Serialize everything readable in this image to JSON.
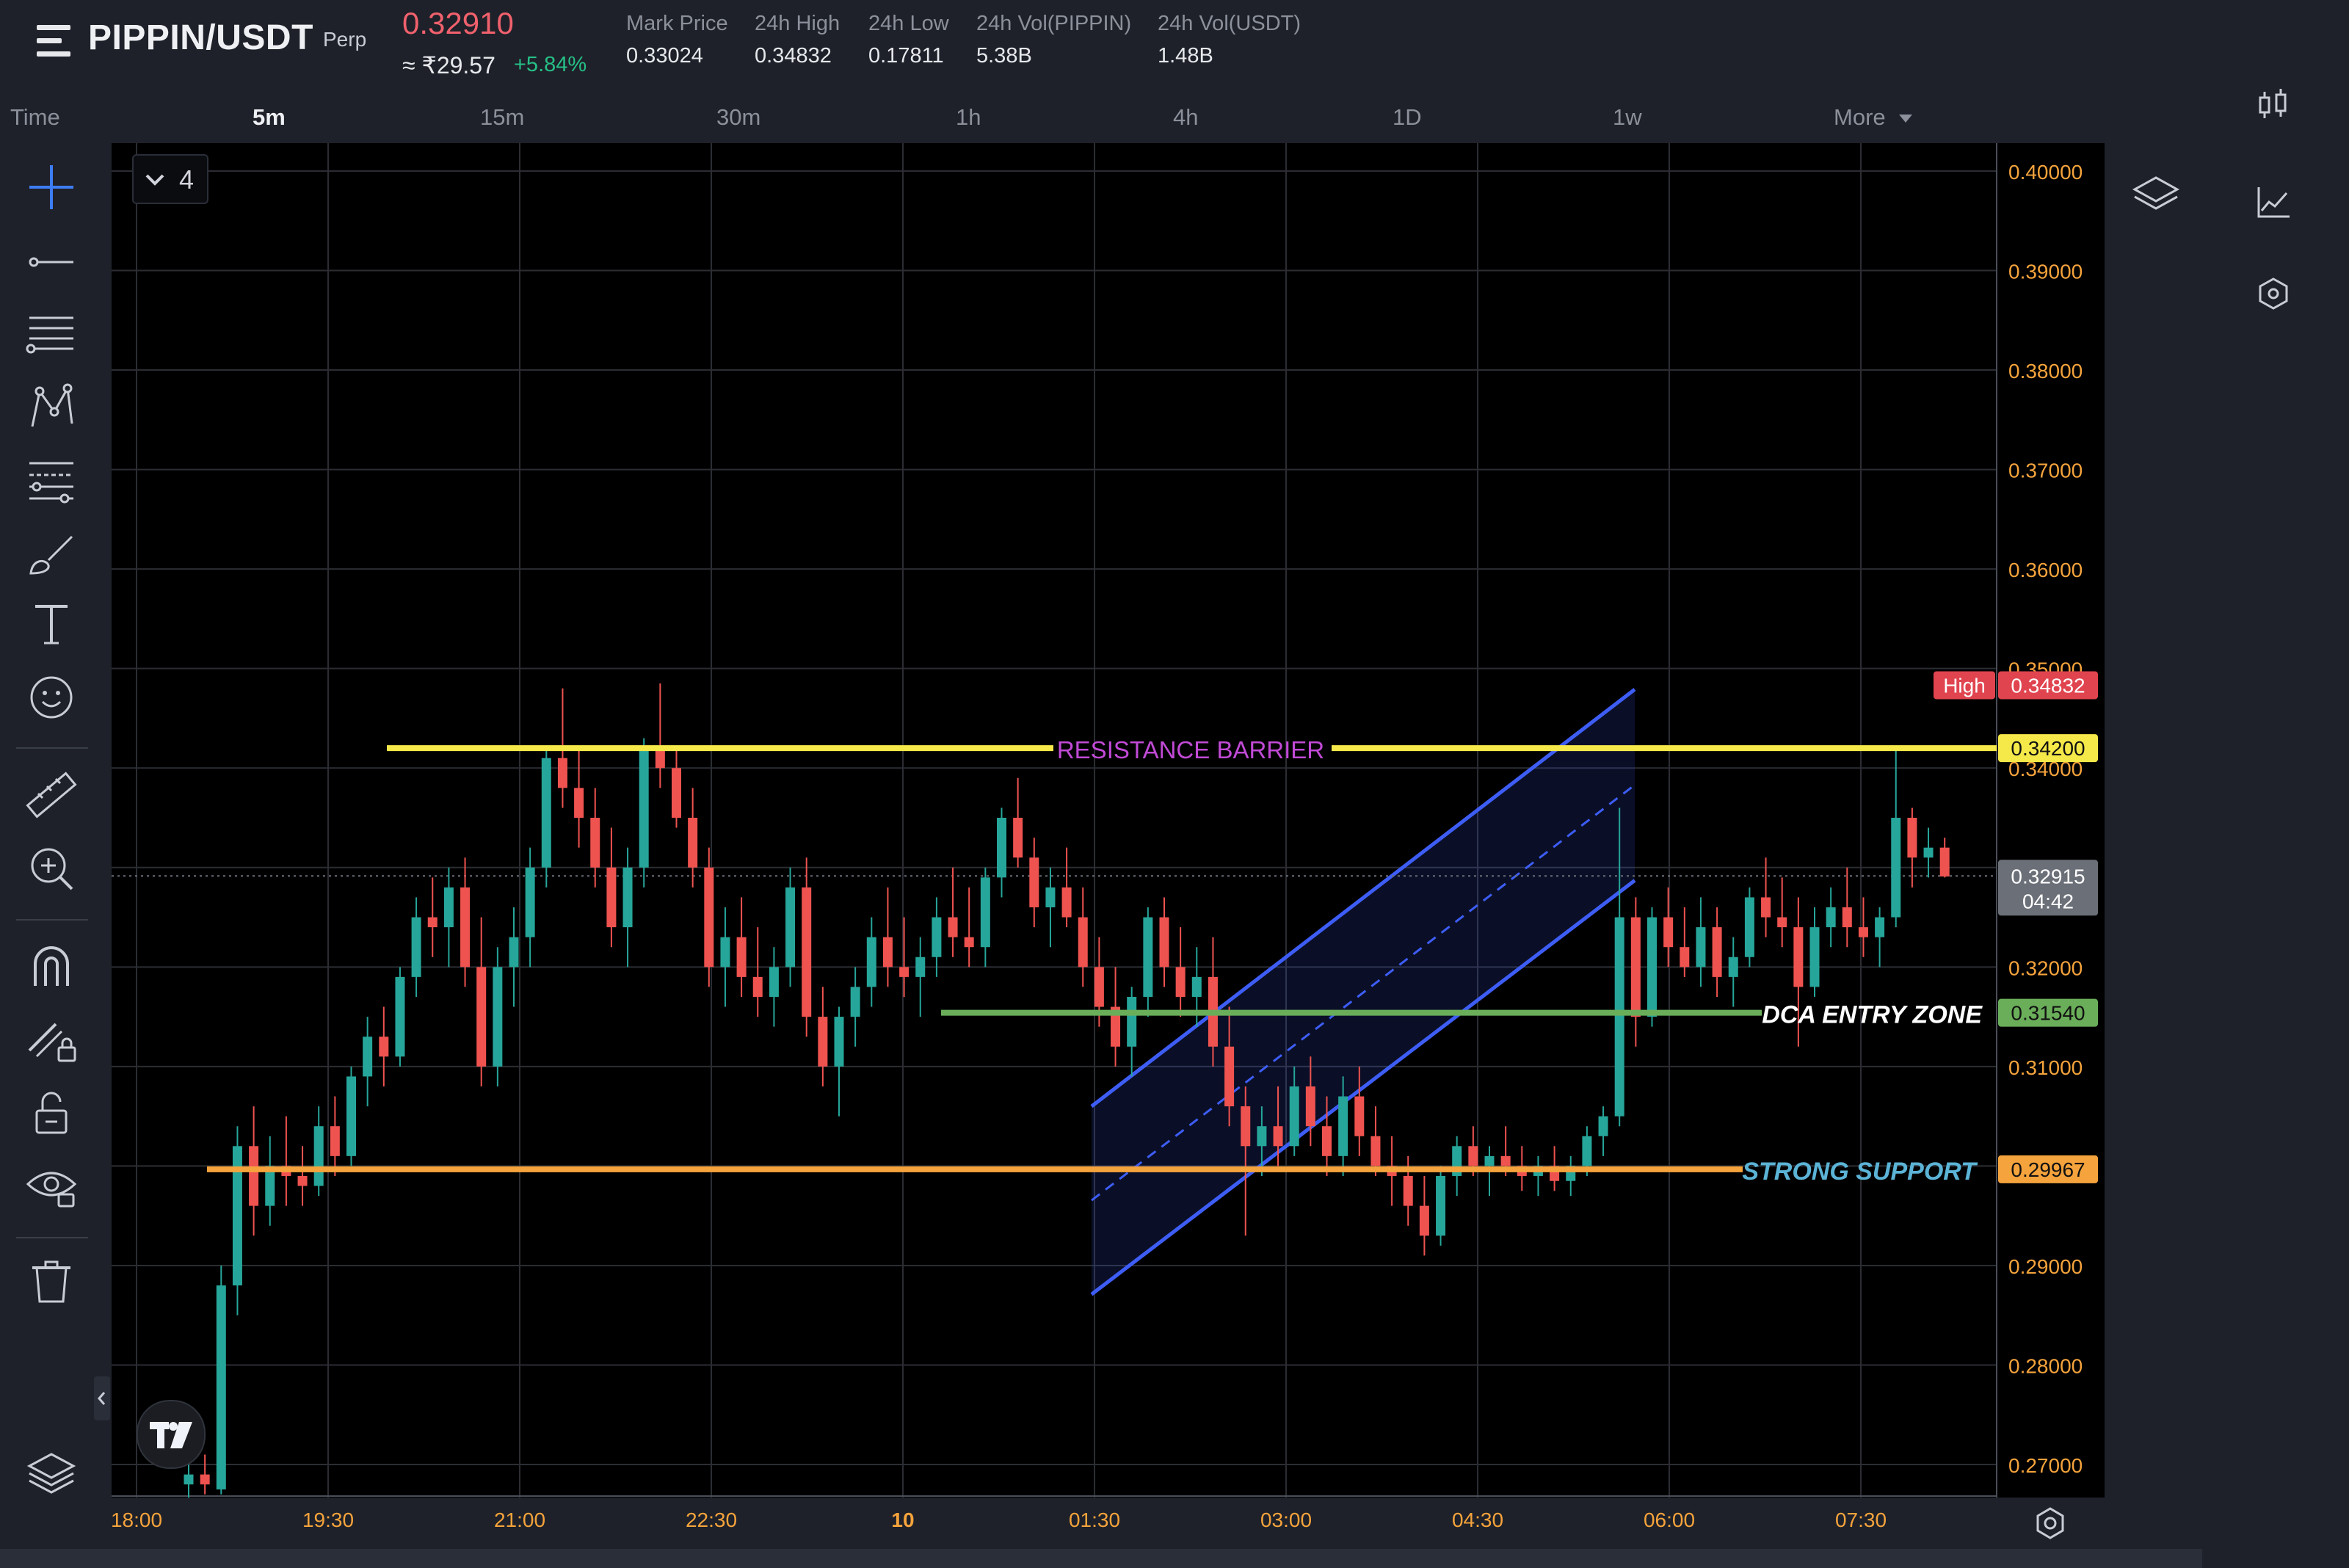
{
  "header": {
    "symbol": "PIPPIN/USDT",
    "contract_type": "Perp",
    "last_price": "0.32910",
    "inr_price": "≈ ₹29.57",
    "change": "+5.84%",
    "stats": [
      {
        "label": "Mark Price",
        "value": "0.33024"
      },
      {
        "label": "24h High",
        "value": "0.34832"
      },
      {
        "label": "24h Low",
        "value": "0.17811"
      },
      {
        "label": "24h Vol(PIPPIN)",
        "value": "5.38B"
      },
      {
        "label": "24h Vol(USDT)",
        "value": "1.48B"
      }
    ]
  },
  "timeframes": {
    "items": [
      "Time",
      "5m",
      "15m",
      "30m",
      "1h",
      "4h",
      "1D",
      "1w",
      "More"
    ],
    "active": "5m"
  },
  "toolbar": {
    "icons": [
      "crosshair-icon",
      "trend-line-icon",
      "horizontal-lines-icon",
      "pattern-icon",
      "fib-levels-icon",
      "brush-icon",
      "text-icon",
      "emoji-icon",
      "ruler-icon",
      "zoom-in-icon",
      "magnet-icon",
      "lock-drawing-icon",
      "unlock-icon",
      "eye-icon",
      "trash-icon",
      "layers-icon"
    ],
    "layers_count": "4"
  },
  "colors": {
    "up": "#26a69a",
    "down": "#ef5350",
    "resistance": "#f5e94a",
    "dca": "#6aae5a",
    "support": "#f5a33c",
    "channel": "#3d5df5",
    "high_label": "#e0444f"
  },
  "chart_data": {
    "type": "candlestick",
    "y_axis": {
      "ticks": [
        "0.40000",
        "0.39000",
        "0.38000",
        "0.37000",
        "0.36000",
        "0.35000",
        "0.34000",
        "0.33000",
        "0.32000",
        "0.31000",
        "0.30000",
        "0.29000",
        "0.28000",
        "0.27000"
      ],
      "range": [
        0.2672,
        0.4028
      ]
    },
    "x_axis": {
      "ticks": [
        "18:00",
        "19:30",
        "21:00",
        "22:30",
        "10",
        "01:30",
        "03:00",
        "04:30",
        "06:00",
        "07:30"
      ]
    },
    "price_tags": {
      "high_label": "High",
      "high_value": "0.34832",
      "resistance": "0.34200",
      "current": "0.32915",
      "countdown": "04:42",
      "dca": "0.31540",
      "support": "0.29967"
    },
    "annotations": {
      "resistance": "RESISTANCE BARRIER",
      "dca": "DCA ENTRY ZONE",
      "support": "STRONG SUPPORT"
    },
    "levels": {
      "resistance": 0.342,
      "dca": 0.3154,
      "support": 0.29967,
      "current": 0.32915
    },
    "channel": {
      "upper_start": [
        0.306,
        0
      ],
      "upper_end": [
        0.3479,
        1
      ],
      "lower_start": [
        0.2871,
        0
      ],
      "lower_end": [
        0.3287,
        1
      ]
    },
    "candles": [
      [
        0.268,
        0.27,
        0.266,
        0.269
      ],
      [
        0.269,
        0.271,
        0.267,
        0.268
      ],
      [
        0.2675,
        0.29,
        0.267,
        0.288
      ],
      [
        0.288,
        0.304,
        0.285,
        0.302
      ],
      [
        0.302,
        0.306,
        0.293,
        0.296
      ],
      [
        0.296,
        0.303,
        0.294,
        0.3
      ],
      [
        0.3,
        0.305,
        0.296,
        0.299
      ],
      [
        0.299,
        0.302,
        0.296,
        0.298
      ],
      [
        0.298,
        0.306,
        0.297,
        0.304
      ],
      [
        0.304,
        0.307,
        0.299,
        0.301
      ],
      [
        0.301,
        0.31,
        0.3,
        0.309
      ],
      [
        0.309,
        0.315,
        0.306,
        0.313
      ],
      [
        0.313,
        0.316,
        0.308,
        0.311
      ],
      [
        0.311,
        0.32,
        0.31,
        0.319
      ],
      [
        0.319,
        0.327,
        0.317,
        0.325
      ],
      [
        0.325,
        0.329,
        0.321,
        0.324
      ],
      [
        0.324,
        0.33,
        0.32,
        0.328
      ],
      [
        0.328,
        0.331,
        0.318,
        0.32
      ],
      [
        0.32,
        0.325,
        0.308,
        0.31
      ],
      [
        0.31,
        0.322,
        0.308,
        0.32
      ],
      [
        0.32,
        0.326,
        0.316,
        0.323
      ],
      [
        0.323,
        0.332,
        0.32,
        0.33
      ],
      [
        0.33,
        0.342,
        0.328,
        0.341
      ],
      [
        0.341,
        0.348,
        0.336,
        0.338
      ],
      [
        0.338,
        0.342,
        0.332,
        0.335
      ],
      [
        0.335,
        0.338,
        0.328,
        0.33
      ],
      [
        0.33,
        0.334,
        0.322,
        0.324
      ],
      [
        0.324,
        0.332,
        0.32,
        0.33
      ],
      [
        0.33,
        0.343,
        0.328,
        0.342
      ],
      [
        0.342,
        0.3485,
        0.338,
        0.34
      ],
      [
        0.34,
        0.342,
        0.334,
        0.335
      ],
      [
        0.335,
        0.338,
        0.328,
        0.33
      ],
      [
        0.33,
        0.332,
        0.318,
        0.32
      ],
      [
        0.32,
        0.326,
        0.316,
        0.323
      ],
      [
        0.323,
        0.327,
        0.317,
        0.319
      ],
      [
        0.319,
        0.324,
        0.315,
        0.317
      ],
      [
        0.317,
        0.322,
        0.314,
        0.32
      ],
      [
        0.32,
        0.33,
        0.318,
        0.328
      ],
      [
        0.328,
        0.331,
        0.313,
        0.315
      ],
      [
        0.315,
        0.318,
        0.308,
        0.31
      ],
      [
        0.31,
        0.316,
        0.305,
        0.315
      ],
      [
        0.315,
        0.32,
        0.312,
        0.318
      ],
      [
        0.318,
        0.325,
        0.316,
        0.323
      ],
      [
        0.323,
        0.328,
        0.318,
        0.32
      ],
      [
        0.32,
        0.325,
        0.317,
        0.319
      ],
      [
        0.319,
        0.323,
        0.315,
        0.321
      ],
      [
        0.321,
        0.327,
        0.319,
        0.325
      ],
      [
        0.325,
        0.33,
        0.321,
        0.323
      ],
      [
        0.323,
        0.328,
        0.32,
        0.322
      ],
      [
        0.322,
        0.33,
        0.32,
        0.329
      ],
      [
        0.329,
        0.336,
        0.327,
        0.335
      ],
      [
        0.335,
        0.339,
        0.33,
        0.331
      ],
      [
        0.331,
        0.333,
        0.324,
        0.326
      ],
      [
        0.326,
        0.33,
        0.322,
        0.328
      ],
      [
        0.328,
        0.332,
        0.324,
        0.325
      ],
      [
        0.325,
        0.328,
        0.318,
        0.32
      ],
      [
        0.32,
        0.323,
        0.314,
        0.316
      ],
      [
        0.316,
        0.32,
        0.31,
        0.312
      ],
      [
        0.312,
        0.318,
        0.309,
        0.317
      ],
      [
        0.317,
        0.326,
        0.315,
        0.325
      ],
      [
        0.325,
        0.327,
        0.318,
        0.32
      ],
      [
        0.32,
        0.324,
        0.315,
        0.317
      ],
      [
        0.317,
        0.322,
        0.314,
        0.319
      ],
      [
        0.319,
        0.323,
        0.31,
        0.312
      ],
      [
        0.312,
        0.316,
        0.304,
        0.306
      ],
      [
        0.306,
        0.308,
        0.293,
        0.302
      ],
      [
        0.302,
        0.306,
        0.299,
        0.304
      ],
      [
        0.304,
        0.308,
        0.3,
        0.302
      ],
      [
        0.302,
        0.31,
        0.301,
        0.308
      ],
      [
        0.308,
        0.311,
        0.302,
        0.304
      ],
      [
        0.304,
        0.307,
        0.299,
        0.301
      ],
      [
        0.301,
        0.309,
        0.299,
        0.307
      ],
      [
        0.307,
        0.31,
        0.301,
        0.303
      ],
      [
        0.303,
        0.306,
        0.299,
        0.3
      ],
      [
        0.3,
        0.303,
        0.296,
        0.299
      ],
      [
        0.299,
        0.301,
        0.294,
        0.296
      ],
      [
        0.296,
        0.299,
        0.291,
        0.293
      ],
      [
        0.293,
        0.3,
        0.292,
        0.299
      ],
      [
        0.299,
        0.303,
        0.297,
        0.302
      ],
      [
        0.302,
        0.304,
        0.299,
        0.3
      ],
      [
        0.3,
        0.302,
        0.297,
        0.301
      ],
      [
        0.301,
        0.304,
        0.299,
        0.3
      ],
      [
        0.3,
        0.302,
        0.2975,
        0.299
      ],
      [
        0.299,
        0.301,
        0.297,
        0.3
      ],
      [
        0.3,
        0.302,
        0.2975,
        0.2985
      ],
      [
        0.2985,
        0.301,
        0.297,
        0.3
      ],
      [
        0.3,
        0.304,
        0.299,
        0.303
      ],
      [
        0.303,
        0.306,
        0.301,
        0.305
      ],
      [
        0.305,
        0.336,
        0.304,
        0.325
      ],
      [
        0.325,
        0.327,
        0.312,
        0.315
      ],
      [
        0.315,
        0.326,
        0.314,
        0.325
      ],
      [
        0.325,
        0.328,
        0.32,
        0.322
      ],
      [
        0.322,
        0.326,
        0.319,
        0.32
      ],
      [
        0.32,
        0.327,
        0.318,
        0.324
      ],
      [
        0.324,
        0.326,
        0.317,
        0.319
      ],
      [
        0.319,
        0.323,
        0.316,
        0.321
      ],
      [
        0.321,
        0.328,
        0.32,
        0.327
      ],
      [
        0.327,
        0.331,
        0.323,
        0.325
      ],
      [
        0.325,
        0.329,
        0.322,
        0.324
      ],
      [
        0.324,
        0.327,
        0.312,
        0.318
      ],
      [
        0.318,
        0.326,
        0.317,
        0.324
      ],
      [
        0.324,
        0.328,
        0.322,
        0.326
      ],
      [
        0.326,
        0.33,
        0.322,
        0.324
      ],
      [
        0.324,
        0.327,
        0.321,
        0.323
      ],
      [
        0.323,
        0.326,
        0.32,
        0.325
      ],
      [
        0.325,
        0.342,
        0.324,
        0.335
      ],
      [
        0.335,
        0.336,
        0.328,
        0.331
      ],
      [
        0.331,
        0.334,
        0.329,
        0.332
      ],
      [
        0.332,
        0.333,
        0.329,
        0.3291
      ]
    ]
  }
}
